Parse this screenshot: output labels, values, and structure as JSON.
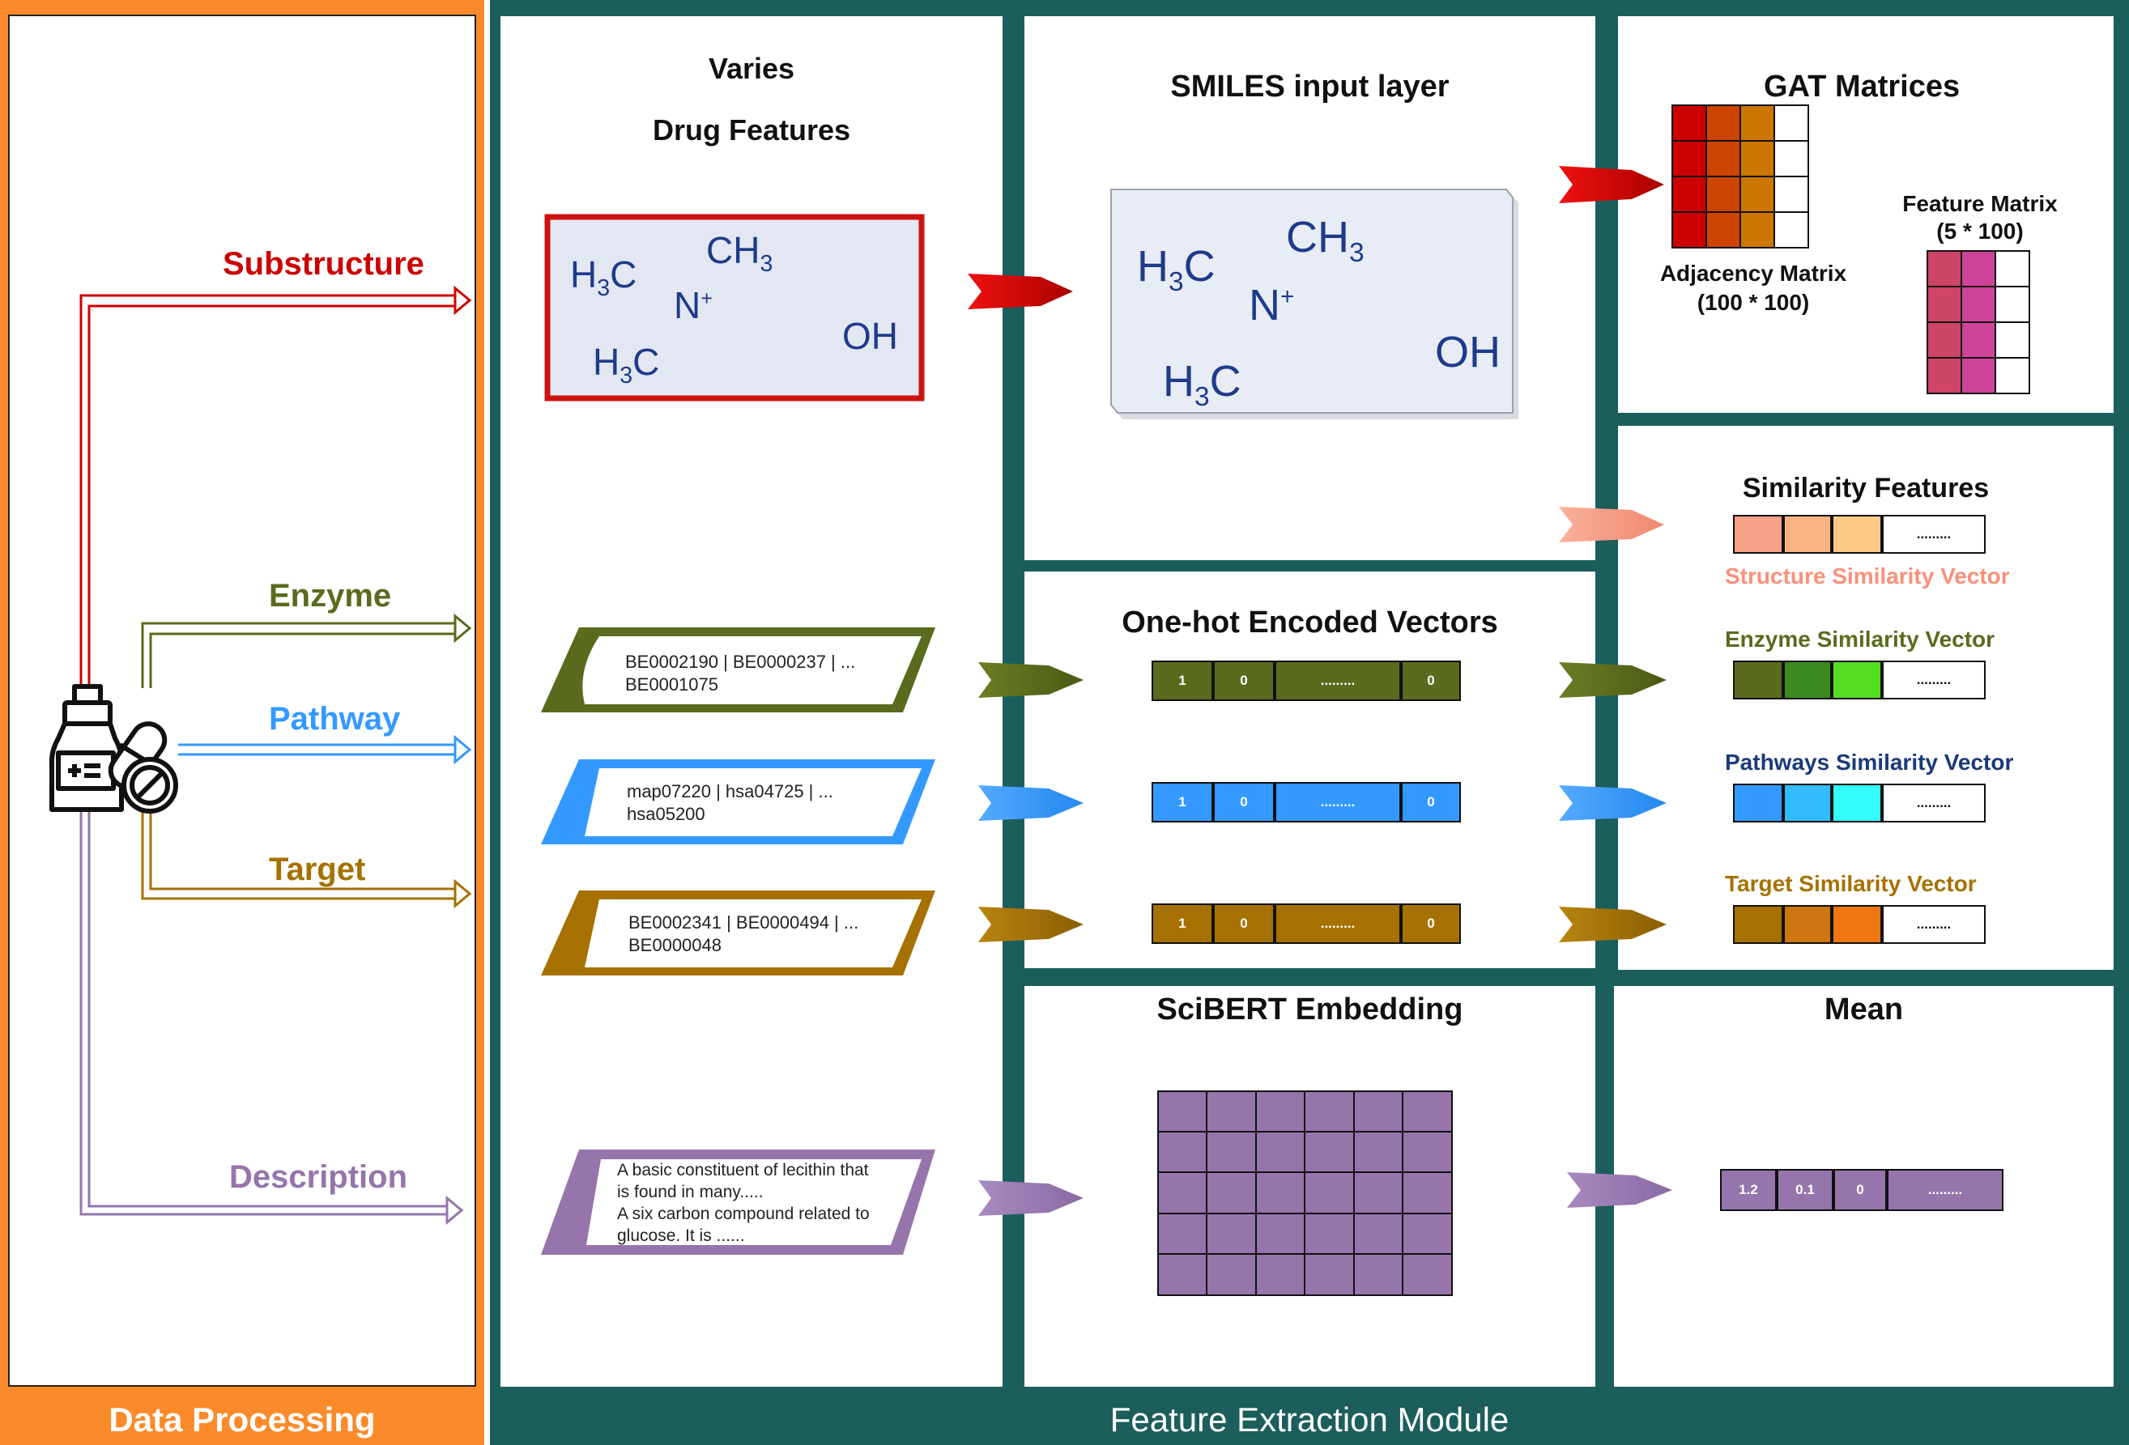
{
  "colors": {
    "orange": "#fa8a2a",
    "teal": "#1c5e5c",
    "red": "#cc0000",
    "olive": "#5a6b1e",
    "blue": "#3399ff",
    "brown": "#a67100",
    "purple": "#9575ab",
    "navy": "#1a3a7a",
    "salmon": "#f9907a"
  },
  "left_panel": {
    "footer": "Data Processing",
    "icon": "medicine-bottle-pills-icon",
    "branches": [
      {
        "key": "substructure",
        "label": "Substructure"
      },
      {
        "key": "enzyme",
        "label": "Enzyme"
      },
      {
        "key": "pathway",
        "label": "Pathway"
      },
      {
        "key": "target",
        "label": "Target"
      },
      {
        "key": "description",
        "label": "Description"
      }
    ]
  },
  "right_panel": {
    "footer": "Feature Extraction Module"
  },
  "drug_features": {
    "title_line1": "Varies",
    "title_line2": "Drug Features",
    "molecule": {
      "ch3_top": "CH3",
      "h3c_left": "H3C",
      "n_plus": "N+",
      "h3c_bottom": "H3C",
      "oh": "OH"
    },
    "enzyme_box": {
      "line1": "BE0002190 | BE0000237 | ...",
      "line2": "BE0001075"
    },
    "pathway_box": {
      "line1": "map07220 | hsa04725 | ...",
      "line2": "hsa05200"
    },
    "target_box": {
      "line1": "BE0002341 | BE0000494 | ...",
      "line2": "BE0000048"
    },
    "description_box": {
      "line1": "A basic constituent of lecithin that",
      "line2": "is found in many.....",
      "line3": "A six carbon compound related to",
      "line4": "glucose. It is ......"
    }
  },
  "smiles_panel": {
    "title": "SMILES input layer"
  },
  "onehot_panel": {
    "title": "One-hot Encoded Vectors",
    "vectors": [
      {
        "key": "enzyme",
        "cells": [
          "1",
          "0",
          ".........",
          "0"
        ]
      },
      {
        "key": "pathway",
        "cells": [
          "1",
          "0",
          ".........",
          "0"
        ]
      },
      {
        "key": "target",
        "cells": [
          "1",
          "0",
          ".........",
          "0"
        ]
      }
    ]
  },
  "scibert_panel": {
    "title": "SciBERT Embedding"
  },
  "gat_panel": {
    "title": "GAT Matrices",
    "adjacency_label_line1": "Adjacency Matrix",
    "adjacency_label_line2": "(100 * 100)",
    "feature_label_line1": "Feature Matrix",
    "feature_label_line2": "(5 * 100)"
  },
  "similarity_panel": {
    "title": "Similarity Features",
    "vectors": [
      {
        "key": "structure",
        "label": "Structure Similarity Vector",
        "dots": ".........",
        "colors": [
          "#f9a088",
          "#fbb383",
          "#fdca86"
        ]
      },
      {
        "key": "enzyme",
        "label": "Enzyme Similarity Vector",
        "dots": ".........",
        "colors": [
          "#5a6b1e",
          "#3c8a1e",
          "#55dd22"
        ]
      },
      {
        "key": "pathways",
        "label": "Pathways Similarity Vector",
        "dots": ".........",
        "colors": [
          "#3399ff",
          "#33bbff",
          "#33ffff"
        ]
      },
      {
        "key": "target",
        "label": "Target Similarity Vector",
        "dots": ".........",
        "colors": [
          "#a67100",
          "#cc7711",
          "#ee7711"
        ]
      }
    ]
  },
  "mean_panel": {
    "title": "Mean",
    "cells": [
      "1.2",
      "0.1",
      "0",
      "........."
    ]
  }
}
